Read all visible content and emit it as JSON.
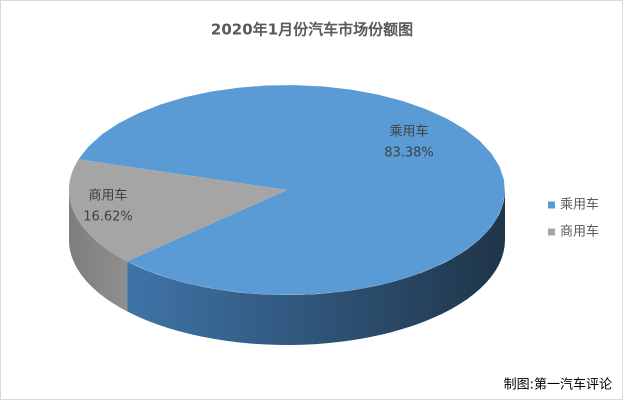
{
  "chart_data": {
    "type": "pie3d",
    "title": "2020年1月份汽车市场份额图",
    "categories": [
      "乘用车",
      "商用车"
    ],
    "values": [
      83.38,
      16.62
    ],
    "value_labels": [
      "83.38%",
      "16.62%"
    ],
    "colors": [
      "#5b9bd5",
      "#a5a5a5"
    ],
    "legend": "right",
    "annotation": "制图:第一汽车评论"
  }
}
